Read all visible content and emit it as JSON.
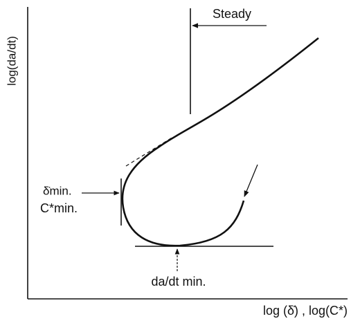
{
  "y_axis_label": "log(da/dt)",
  "x_axis_label": "log (δ̇) , log(C*)",
  "annotations": {
    "steady": "Steady",
    "delta_min": "δ̇min.",
    "cstar_min": "C*min.",
    "rate_min": "da/dt min."
  }
}
